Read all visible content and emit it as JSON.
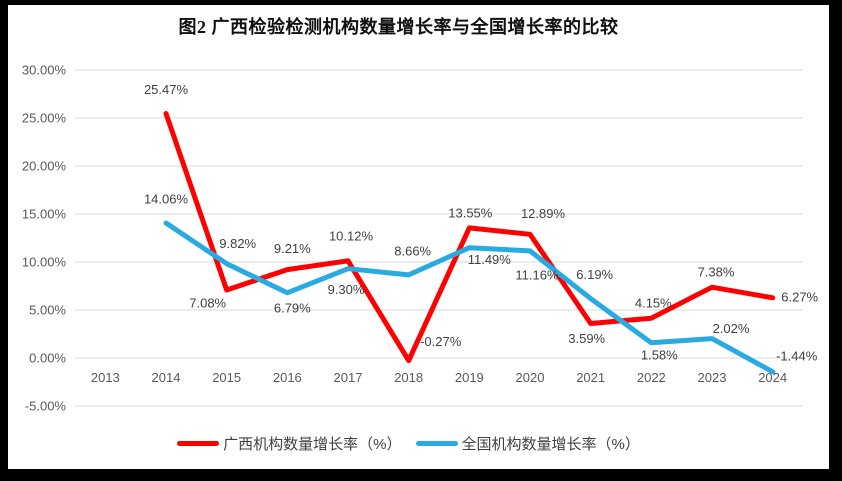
{
  "title": "图2 广西检验检测机构数量增长率与全国增长率的比较",
  "frame_color": "#000000",
  "background_color": "#ffffff",
  "chart_data": {
    "type": "line",
    "title": "图2 广西检验检测机构数量增长率与全国增长率的比较",
    "categories": [
      "2013",
      "2014",
      "2015",
      "2016",
      "2017",
      "2018",
      "2019",
      "2020",
      "2021",
      "2022",
      "2023",
      "2024"
    ],
    "series": [
      {
        "name": "广西机构数量增长率（%）",
        "color": "#FF0000",
        "values": [
          null,
          25.47,
          7.08,
          9.21,
          10.12,
          -0.27,
          13.55,
          12.89,
          3.59,
          4.15,
          7.38,
          6.27
        ],
        "labels": [
          null,
          "25.47%",
          "7.08%",
          "9.21%",
          "10.12%",
          "-0.27%",
          "13.55%",
          "12.89%",
          "3.59%",
          "4.15%",
          "7.38%",
          "6.27%"
        ]
      },
      {
        "name": "全国机构数量增长率（%）",
        "color": "#29ABE2",
        "values": [
          null,
          14.06,
          9.82,
          6.79,
          9.3,
          8.66,
          11.49,
          11.16,
          6.19,
          1.58,
          2.02,
          -1.44
        ],
        "labels": [
          null,
          "14.06%",
          "9.82%",
          "6.79%",
          "9.30%",
          "8.66%",
          "11.49%",
          "11.16%",
          "6.19%",
          "1.58%",
          "2.02%",
          "-1.44%"
        ]
      }
    ],
    "y_ticks": [
      {
        "value": 30,
        "label": "30.00%"
      },
      {
        "value": 25,
        "label": "25.00%"
      },
      {
        "value": 20,
        "label": "20.00%"
      },
      {
        "value": 15,
        "label": "15.00%"
      },
      {
        "value": 10,
        "label": "10.00%"
      },
      {
        "value": 5,
        "label": "5.00%"
      },
      {
        "value": 0,
        "label": "0.00%"
      },
      {
        "value": -5,
        "label": "-5.00%"
      }
    ],
    "ylim": [
      -5,
      30
    ],
    "xlabel": "",
    "ylabel": "",
    "grid": true,
    "gridline_color": "#D9D9D9",
    "legend_position": "bottom"
  }
}
